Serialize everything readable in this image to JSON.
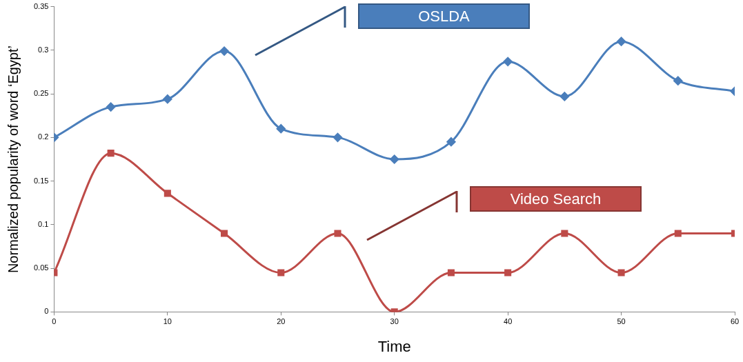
{
  "chart_data": {
    "type": "line",
    "xlabel": "Time",
    "ylabel": "Normalized popularity of word ‘Egypt’",
    "x": [
      0,
      5,
      10,
      15,
      20,
      25,
      30,
      35,
      40,
      45,
      50,
      55,
      60
    ],
    "xlim": [
      0,
      60
    ],
    "xticks": [
      0,
      10,
      20,
      30,
      40,
      50,
      60
    ],
    "ylim": [
      0,
      0.35
    ],
    "yticks": [
      0,
      0.05,
      0.1,
      0.15,
      0.2,
      0.25,
      0.3,
      0.35
    ],
    "grid": false,
    "legend": false,
    "series": [
      {
        "name": "OSLDA",
        "color": "#4a7ebb",
        "marker": "diamond",
        "values": [
          0.2,
          0.235,
          0.244,
          0.299,
          0.21,
          0.2,
          0.175,
          0.195,
          0.287,
          0.247,
          0.31,
          0.265,
          0.253
        ]
      },
      {
        "name": "Video Search",
        "color": "#be4b48",
        "marker": "square",
        "values": [
          0.045,
          0.182,
          0.136,
          0.09,
          0.045,
          0.09,
          0,
          0.045,
          0.045,
          0.09,
          0.045,
          0.09,
          0.09
        ]
      }
    ]
  }
}
